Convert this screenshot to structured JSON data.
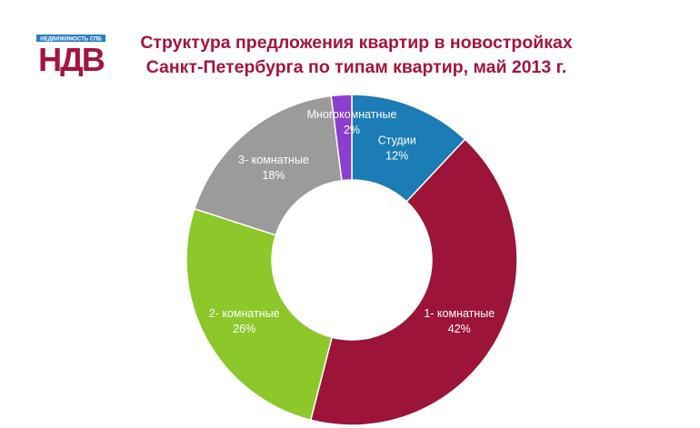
{
  "logo": {
    "tagline": "НЕДВИЖИМОСТЬ СПБ",
    "mark": "НДВ"
  },
  "chart_data": {
    "type": "pie",
    "donut": true,
    "title": "Структура предложения квартир в новостройках Санкт-Петербурга по типам квартир, май 2013 г.",
    "categories": [
      "Студии",
      "1- комнатные",
      "2- комнатные",
      "3- комнатные",
      "Многокомнатные"
    ],
    "values": [
      12,
      42,
      26,
      18,
      2
    ],
    "labels": [
      "12%",
      "42%",
      "26%",
      "18%",
      "2%"
    ],
    "colors": [
      "#1b7cb6",
      "#9c1538",
      "#8cc82a",
      "#9b9b9b",
      "#8b3fcf"
    ],
    "legend": "none"
  }
}
